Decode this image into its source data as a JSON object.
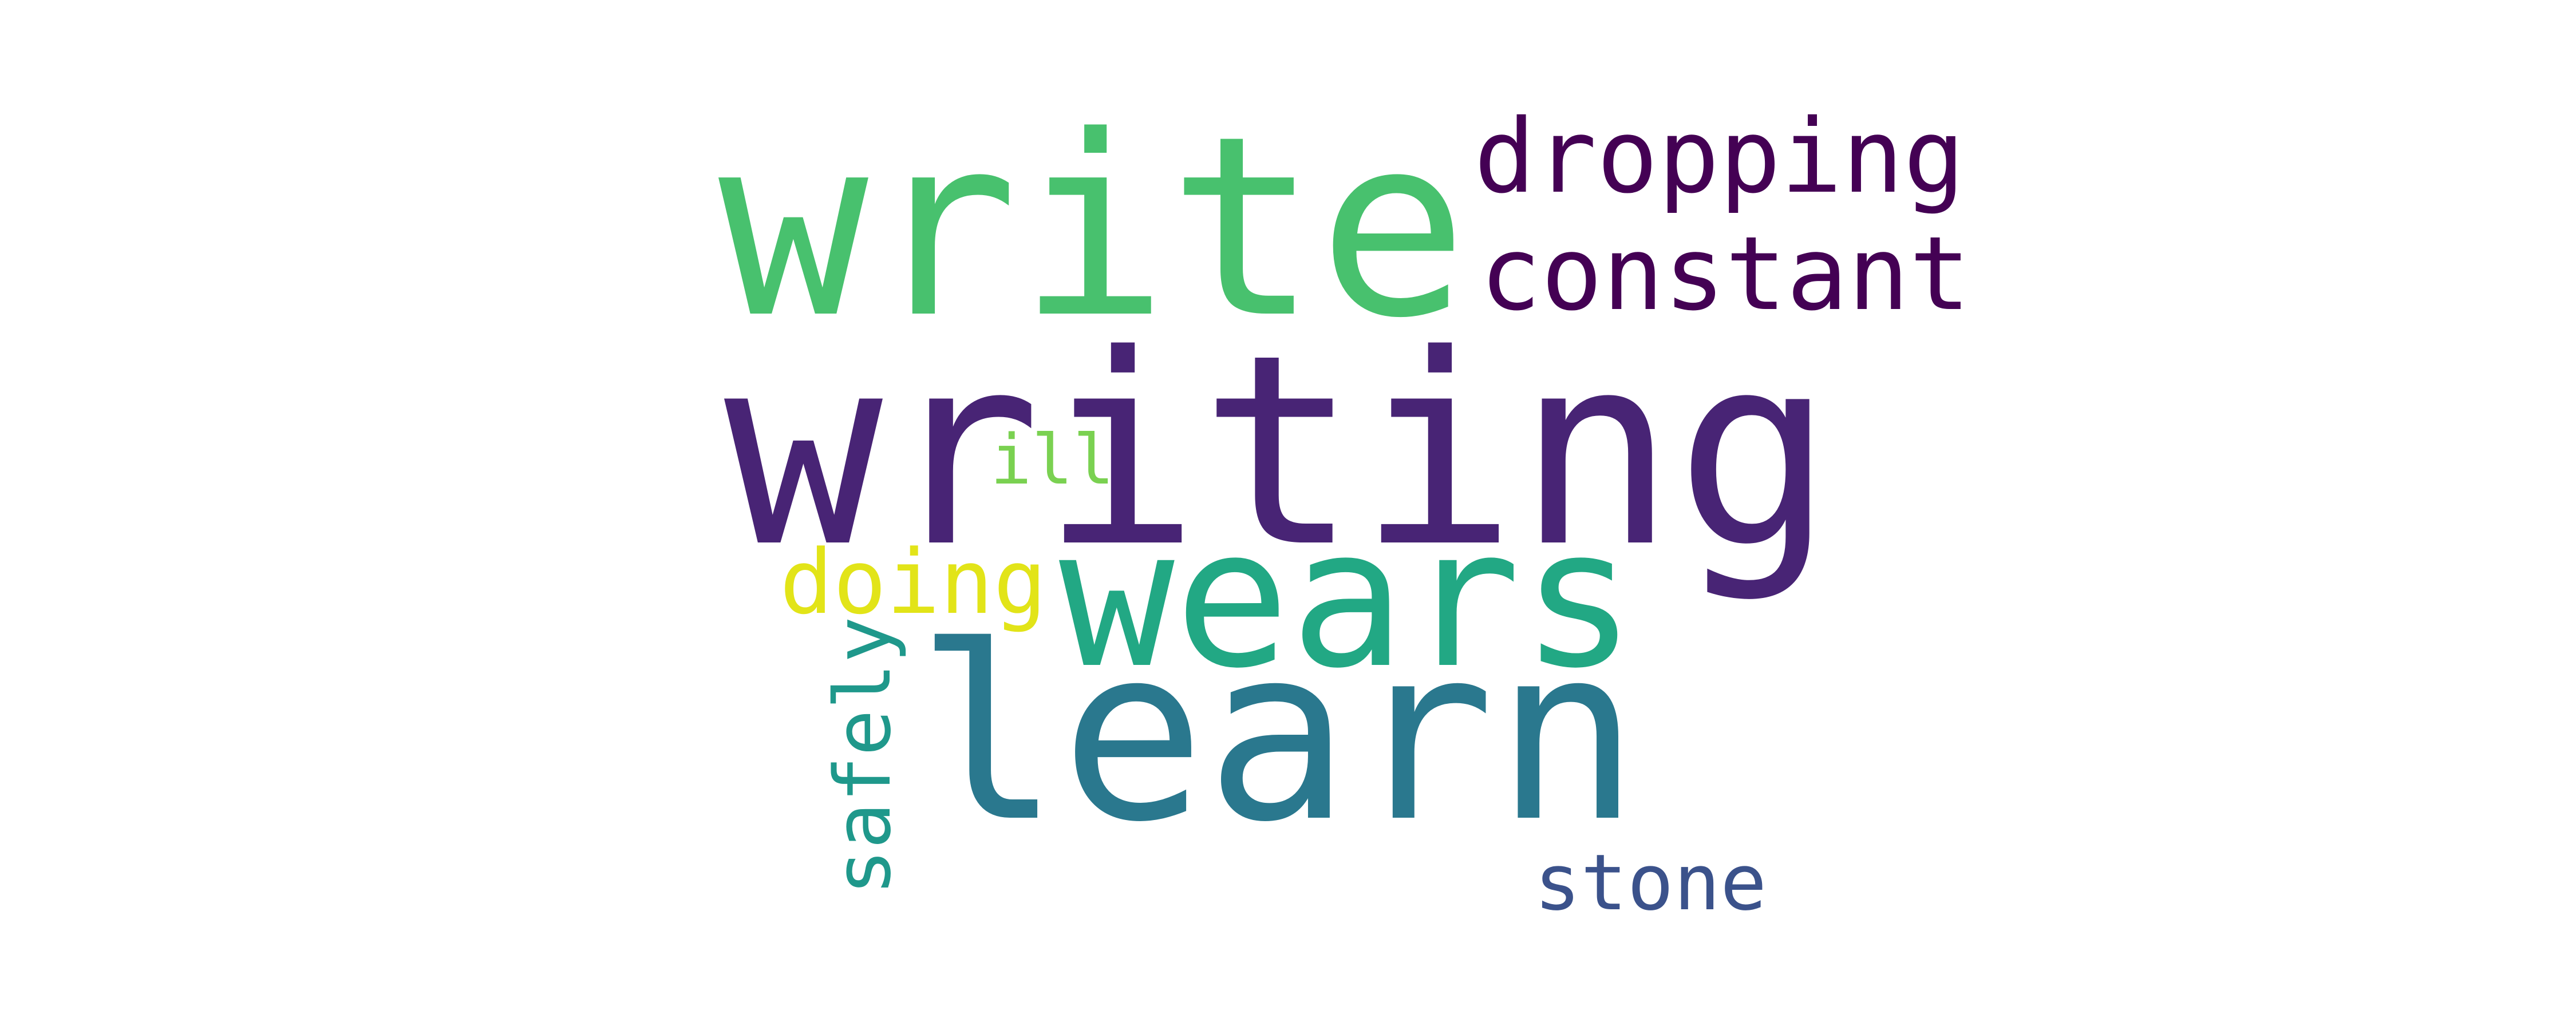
{
  "background": "#ffffff",
  "words": [
    {
      "text": "writing",
      "color": "#482475"
    },
    {
      "text": "write",
      "color": "#48c16e"
    },
    {
      "text": "learn",
      "color": "#2a788e"
    },
    {
      "text": "wears",
      "color": "#22a884"
    },
    {
      "text": "dropping",
      "color": "#440154"
    },
    {
      "text": "constant",
      "color": "#440154"
    },
    {
      "text": "doing",
      "color": "#e2e418"
    },
    {
      "text": "safely",
      "color": "#1f988b"
    },
    {
      "text": "stone",
      "color": "#3b528b"
    },
    {
      "text": "ill",
      "color": "#7ad151"
    }
  ]
}
